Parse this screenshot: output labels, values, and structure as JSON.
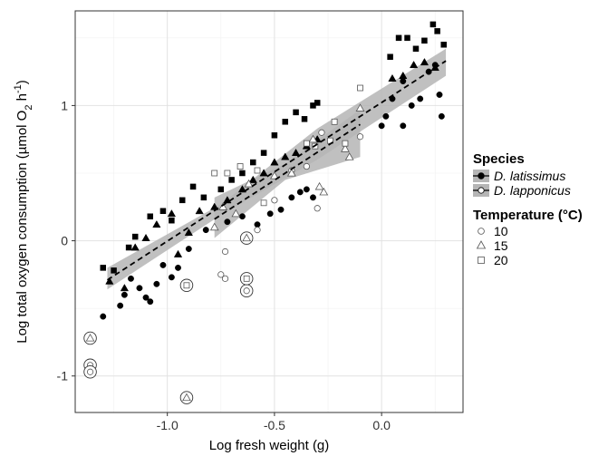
{
  "chart_data": {
    "type": "scatter",
    "xlabel": "Log fresh weight (g)",
    "ylabel_main": "Log total oxygen consumption (µmol O",
    "ylabel_sub": "2",
    "ylabel_end": " h",
    "ylabel_sup": "-1",
    "ylabel_close": ")",
    "xlim": [
      -1.43,
      0.38
    ],
    "ylim": [
      -1.27,
      1.7
    ],
    "x_ticks": [
      -1.0,
      -0.5,
      0.0
    ],
    "x_tick_labels": [
      "-1.0",
      "-0.5",
      "0.0"
    ],
    "y_ticks": [
      -1,
      0,
      1
    ],
    "y_tick_labels": [
      "-1",
      "0",
      "1"
    ],
    "grid": true,
    "legend": {
      "placement": "right",
      "species_title": "Species",
      "species": [
        {
          "label": "D. latissimus",
          "fill": "#000000",
          "band": "#b5b5b5"
        },
        {
          "label": "D. lapponicus",
          "fill": "#ffffff",
          "band": "#b5b5b5"
        }
      ],
      "temperature_title": "Temperature (°C)",
      "temperatures": [
        {
          "label": "10",
          "shape": "circle"
        },
        {
          "label": "15",
          "shape": "triangle"
        },
        {
          "label": "20",
          "shape": "square"
        }
      ]
    },
    "fits": [
      {
        "species": "D. latissimus",
        "line": [
          [
            -1.28,
            -0.29
          ],
          [
            0.3,
            1.33
          ]
        ],
        "band_upper": [
          [
            -1.28,
            -0.2
          ],
          [
            -0.75,
            0.27
          ],
          [
            -0.3,
            0.83
          ],
          [
            0.3,
            1.42
          ]
        ],
        "band_lower": [
          [
            -1.28,
            -0.36
          ],
          [
            -0.75,
            0.19
          ],
          [
            -0.3,
            0.6
          ],
          [
            0.3,
            1.22
          ]
        ]
      },
      {
        "species": "D. lapponicus",
        "line": [
          [
            -0.78,
            0.16
          ],
          [
            -0.1,
            0.86
          ]
        ],
        "band_upper": [
          [
            -0.78,
            0.32
          ],
          [
            -0.45,
            0.57
          ],
          [
            -0.1,
            0.97
          ]
        ],
        "band_lower": [
          [
            -0.78,
            0.02
          ],
          [
            -0.45,
            0.45
          ],
          [
            -0.1,
            0.62
          ]
        ]
      }
    ],
    "series": [
      {
        "species": "D. latissimus",
        "temperature": "10",
        "shape": "circle",
        "filled": true,
        "points": [
          [
            -1.3,
            -0.56
          ],
          [
            -1.22,
            -0.48
          ],
          [
            -1.2,
            -0.4
          ],
          [
            -1.17,
            -0.28
          ],
          [
            -1.13,
            -0.35
          ],
          [
            -1.1,
            -0.42
          ],
          [
            -1.08,
            -0.45
          ],
          [
            -1.05,
            -0.32
          ],
          [
            -1.02,
            -0.18
          ],
          [
            -0.98,
            -0.27
          ],
          [
            -0.95,
            -0.2
          ],
          [
            -0.9,
            -0.06
          ],
          [
            -0.82,
            0.08
          ],
          [
            -0.72,
            0.14
          ],
          [
            -0.65,
            0.18
          ],
          [
            -0.58,
            0.12
          ],
          [
            -0.52,
            0.2
          ],
          [
            -0.47,
            0.23
          ],
          [
            -0.42,
            0.32
          ],
          [
            -0.38,
            0.36
          ],
          [
            -0.35,
            0.38
          ],
          [
            -0.32,
            0.32
          ],
          [
            0.0,
            0.85
          ],
          [
            0.02,
            0.92
          ],
          [
            0.05,
            1.05
          ],
          [
            0.1,
            1.18
          ],
          [
            0.14,
            1.0
          ],
          [
            0.18,
            1.05
          ],
          [
            0.22,
            1.25
          ],
          [
            0.25,
            1.3
          ],
          [
            0.28,
            0.92
          ],
          [
            0.27,
            1.08
          ],
          [
            0.1,
            0.85
          ]
        ]
      },
      {
        "species": "D. latissimus",
        "temperature": "15",
        "shape": "triangle",
        "filled": true,
        "points": [
          [
            -1.27,
            -0.3
          ],
          [
            -1.2,
            -0.35
          ],
          [
            -1.15,
            -0.05
          ],
          [
            -1.1,
            0.02
          ],
          [
            -1.05,
            0.12
          ],
          [
            -0.98,
            0.2
          ],
          [
            -0.95,
            -0.1
          ],
          [
            -0.9,
            0.06
          ],
          [
            -0.85,
            0.22
          ],
          [
            -0.78,
            0.25
          ],
          [
            -0.72,
            0.3
          ],
          [
            -0.65,
            0.38
          ],
          [
            -0.6,
            0.45
          ],
          [
            -0.55,
            0.5
          ],
          [
            -0.5,
            0.58
          ],
          [
            -0.45,
            0.62
          ],
          [
            -0.4,
            0.65
          ],
          [
            -0.35,
            0.7
          ],
          [
            -0.3,
            0.75
          ],
          [
            0.05,
            1.2
          ],
          [
            0.1,
            1.22
          ],
          [
            0.15,
            1.3
          ],
          [
            0.2,
            1.32
          ],
          [
            0.25,
            1.28
          ]
        ]
      },
      {
        "species": "D. latissimus",
        "temperature": "20",
        "shape": "square",
        "filled": true,
        "points": [
          [
            -1.3,
            -0.2
          ],
          [
            -1.25,
            -0.22
          ],
          [
            -1.18,
            -0.05
          ],
          [
            -1.15,
            0.03
          ],
          [
            -1.08,
            0.18
          ],
          [
            -1.02,
            0.22
          ],
          [
            -0.98,
            0.15
          ],
          [
            -0.93,
            0.3
          ],
          [
            -0.88,
            0.4
          ],
          [
            -0.83,
            0.32
          ],
          [
            -0.75,
            0.38
          ],
          [
            -0.7,
            0.45
          ],
          [
            -0.65,
            0.5
          ],
          [
            -0.6,
            0.58
          ],
          [
            -0.55,
            0.65
          ],
          [
            -0.5,
            0.78
          ],
          [
            -0.45,
            0.88
          ],
          [
            -0.4,
            0.95
          ],
          [
            -0.36,
            0.9
          ],
          [
            -0.32,
            1.0
          ],
          [
            -0.3,
            1.02
          ],
          [
            0.04,
            1.36
          ],
          [
            0.08,
            1.5
          ],
          [
            0.12,
            1.5
          ],
          [
            0.16,
            1.42
          ],
          [
            0.2,
            1.48
          ],
          [
            0.24,
            1.6
          ],
          [
            0.26,
            1.55
          ],
          [
            0.29,
            1.45
          ]
        ]
      },
      {
        "species": "D. lapponicus",
        "temperature": "10",
        "shape": "circle",
        "filled": false,
        "points": [
          [
            -1.36,
            -0.92
          ],
          [
            -1.36,
            -0.97
          ],
          [
            -0.75,
            -0.25
          ],
          [
            -0.73,
            -0.28
          ],
          [
            -0.73,
            -0.08
          ],
          [
            -0.63,
            -0.37
          ],
          [
            -0.63,
            -0.3
          ],
          [
            -0.58,
            0.08
          ],
          [
            -0.5,
            0.3
          ],
          [
            -0.42,
            0.52
          ],
          [
            -0.35,
            0.55
          ],
          [
            -0.3,
            0.24
          ],
          [
            -0.28,
            0.8
          ],
          [
            -0.1,
            0.77
          ]
        ]
      },
      {
        "species": "D. lapponicus",
        "temperature": "15",
        "shape": "triangle",
        "filled": false,
        "points": [
          [
            -1.36,
            -0.72
          ],
          [
            -0.91,
            -1.16
          ],
          [
            -0.63,
            0.02
          ],
          [
            -0.78,
            0.1
          ],
          [
            -0.74,
            0.25
          ],
          [
            -0.68,
            0.2
          ],
          [
            -0.62,
            0.42
          ],
          [
            -0.5,
            0.48
          ],
          [
            -0.42,
            0.5
          ],
          [
            -0.32,
            0.75
          ],
          [
            -0.29,
            0.4
          ],
          [
            -0.27,
            0.36
          ],
          [
            -0.17,
            0.68
          ],
          [
            -0.15,
            0.62
          ],
          [
            -0.1,
            0.98
          ]
        ]
      },
      {
        "species": "D. lapponicus",
        "temperature": "20",
        "shape": "square",
        "filled": false,
        "points": [
          [
            -0.91,
            -0.33
          ],
          [
            -0.63,
            -0.28
          ],
          [
            -0.78,
            0.5
          ],
          [
            -0.72,
            0.5
          ],
          [
            -0.66,
            0.55
          ],
          [
            -0.58,
            0.52
          ],
          [
            -0.55,
            0.28
          ],
          [
            -0.35,
            0.72
          ],
          [
            -0.31,
            0.7
          ],
          [
            -0.24,
            0.74
          ],
          [
            -0.22,
            0.88
          ],
          [
            -0.17,
            0.72
          ],
          [
            -0.1,
            1.13
          ]
        ]
      }
    ],
    "ringed_points": [
      [
        -1.36,
        -0.72
      ],
      [
        -1.36,
        -0.92
      ],
      [
        -1.36,
        -0.97
      ],
      [
        -0.91,
        -1.16
      ],
      [
        -0.91,
        -0.33
      ],
      [
        -0.63,
        -0.28
      ],
      [
        -0.63,
        -0.37
      ],
      [
        -0.63,
        0.02
      ]
    ]
  }
}
